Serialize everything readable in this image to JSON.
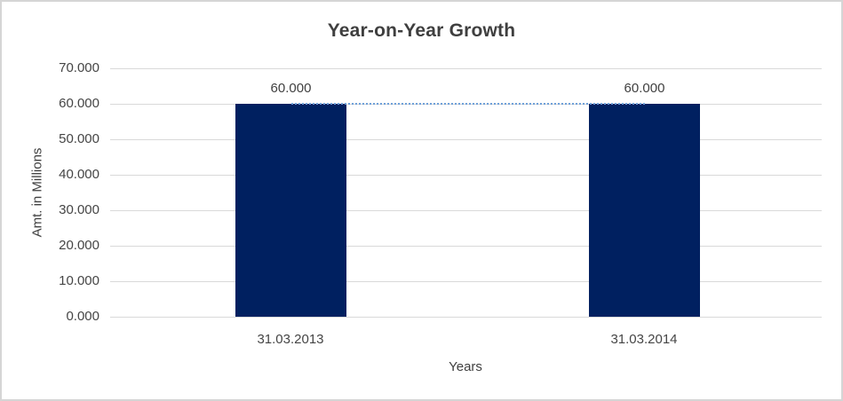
{
  "colors": {
    "bar": "#002060",
    "trendline": "#6fa0d8",
    "gridline": "#d9d9d9",
    "title_text": "#3f3f3f",
    "axis_text": "#454545",
    "frame_border": "#d5d5d5",
    "background": "#ffffff"
  },
  "chart_data": {
    "type": "bar",
    "title": "Year-on-Year Growth",
    "xlabel": "Years",
    "ylabel": "Amt. in Millions",
    "categories": [
      "31.03.2013",
      "31.03.2014"
    ],
    "values": [
      60,
      60
    ],
    "data_labels": [
      "60.000",
      "60.000"
    ],
    "ylim": [
      0,
      70
    ],
    "ytick_step": 10,
    "ytick_labels": [
      "70.000",
      "60.000",
      "50.000",
      "40.000",
      "30.000",
      "20.000",
      "10.000",
      "0.000"
    ],
    "grid": "horizontal",
    "legend": "none",
    "trendline": {
      "style": "dotted",
      "from_category": "31.03.2013",
      "to_category": "31.03.2014",
      "at_value": 60
    }
  }
}
